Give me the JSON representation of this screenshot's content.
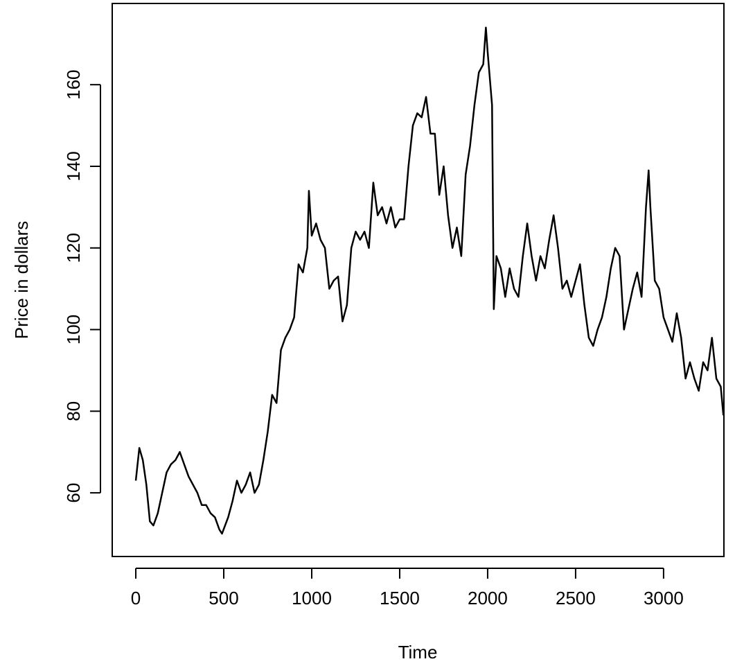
{
  "chart_data": {
    "type": "line",
    "xlabel": "Time",
    "ylabel": "Price in dollars",
    "x": [
      0,
      20,
      40,
      60,
      80,
      100,
      125,
      150,
      175,
      200,
      225,
      250,
      275,
      300,
      325,
      350,
      375,
      400,
      425,
      450,
      475,
      490,
      525,
      550,
      575,
      600,
      625,
      650,
      675,
      700,
      725,
      750,
      775,
      800,
      825,
      850,
      875,
      900,
      925,
      950,
      975,
      984,
      1000,
      1025,
      1050,
      1075,
      1100,
      1125,
      1150,
      1175,
      1200,
      1225,
      1250,
      1275,
      1300,
      1325,
      1350,
      1375,
      1400,
      1425,
      1450,
      1475,
      1500,
      1525,
      1550,
      1575,
      1600,
      1625,
      1650,
      1675,
      1700,
      1725,
      1750,
      1775,
      1800,
      1825,
      1850,
      1875,
      1900,
      1925,
      1950,
      1975,
      1990,
      2000,
      2025,
      2035,
      2050,
      2075,
      2100,
      2125,
      2150,
      2175,
      2200,
      2225,
      2250,
      2275,
      2300,
      2325,
      2350,
      2375,
      2400,
      2425,
      2450,
      2475,
      2500,
      2525,
      2550,
      2575,
      2600,
      2625,
      2650,
      2675,
      2700,
      2725,
      2750,
      2775,
      2800,
      2825,
      2850,
      2875,
      2900,
      2915,
      2925,
      2950,
      2975,
      3000,
      3025,
      3050,
      3075,
      3100,
      3125,
      3150,
      3175,
      3200,
      3225,
      3250,
      3275,
      3300,
      3325,
      3340
    ],
    "series": [
      {
        "name": "Price",
        "color": "#000000",
        "values": [
          63,
          71,
          68,
          62,
          53,
          52,
          55,
          60,
          65,
          67,
          68,
          70,
          67,
          64,
          62,
          60,
          57,
          57,
          55,
          54,
          51,
          50,
          54,
          58,
          63,
          60,
          62,
          65,
          60,
          62,
          68,
          75,
          84,
          82,
          95,
          98,
          100,
          103,
          116,
          114,
          120,
          134,
          123,
          126,
          122,
          120,
          110,
          112,
          113,
          102,
          106,
          120,
          124,
          122,
          124,
          120,
          136,
          128,
          130,
          126,
          130,
          125,
          127,
          127,
          140,
          150,
          153,
          152,
          157,
          148,
          148,
          133,
          140,
          128,
          120,
          125,
          118,
          138,
          145,
          155,
          163,
          165,
          174,
          168,
          155,
          105,
          118,
          115,
          108,
          115,
          110,
          108,
          118,
          126,
          118,
          112,
          118,
          115,
          122,
          128,
          120,
          110,
          112,
          108,
          112,
          116,
          106,
          98,
          96,
          100,
          103,
          108,
          115,
          120,
          118,
          100,
          105,
          110,
          114,
          108,
          130,
          139,
          130,
          112,
          110,
          103,
          100,
          97,
          104,
          98,
          88,
          92,
          88,
          85,
          92,
          90,
          98,
          88,
          86,
          79
        ]
      }
    ],
    "xlim": [
      -134,
      3343
    ],
    "ylim": [
      44.4,
      179.9
    ],
    "xticks": [
      0,
      500,
      1000,
      1500,
      2000,
      2500,
      3000
    ],
    "yticks": [
      60,
      80,
      100,
      120,
      140,
      160
    ]
  }
}
